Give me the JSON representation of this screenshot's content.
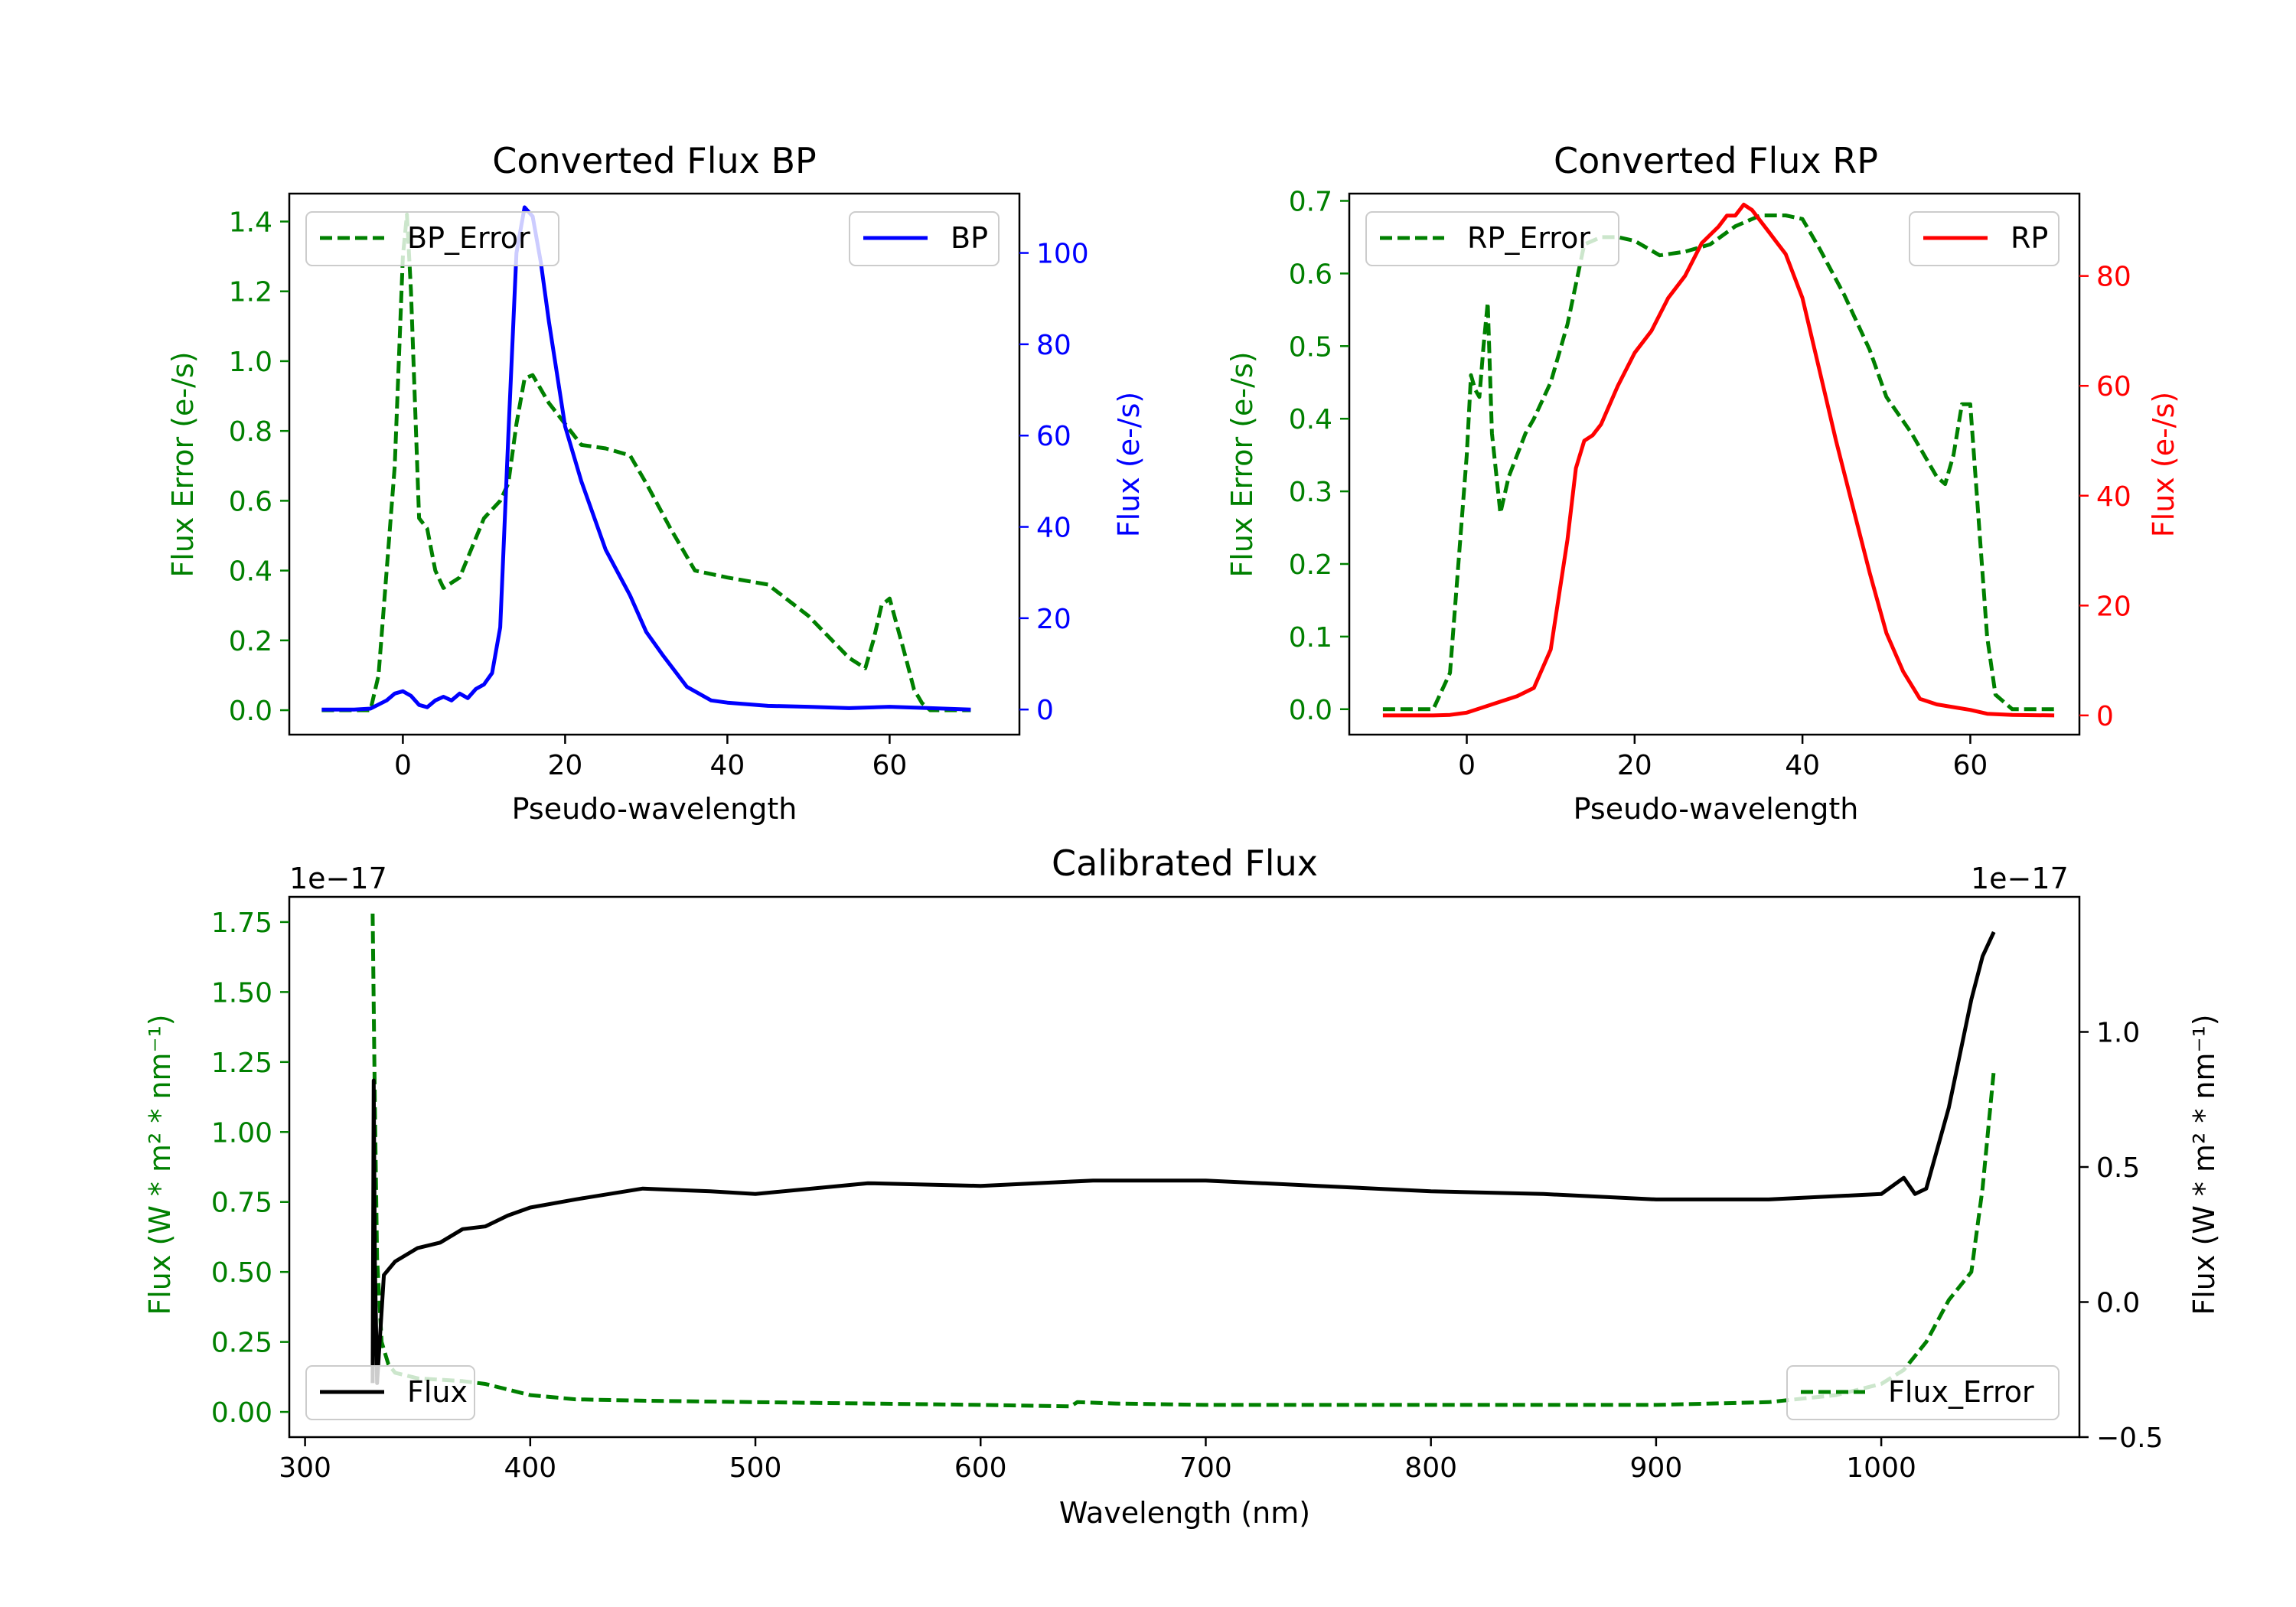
{
  "chart_data": [
    {
      "type": "line",
      "title": "Converted Flux BP",
      "xlabel": "Pseudo-wavelength",
      "ylabel_left": "Flux Error (e-/s)",
      "ylabel_right": "Flux (e-/s)",
      "xlim": [
        -14,
        76
      ],
      "ylim_left": [
        -0.07,
        1.48
      ],
      "ylim_right": [
        -5.5,
        113
      ],
      "xticks": [
        0,
        20,
        40,
        60
      ],
      "yticks_left": [
        0.0,
        0.2,
        0.4,
        0.6,
        0.8,
        1.0,
        1.2,
        1.4
      ],
      "yticks_right": [
        0,
        20,
        40,
        60,
        80,
        100
      ],
      "colors": {
        "left": "#008000",
        "right": "#0000ff"
      },
      "legend_left": {
        "label": "BP_Error",
        "placement": "upper left"
      },
      "legend_right": {
        "label": "BP",
        "placement": "upper right"
      },
      "series": [
        {
          "name": "BP_Error",
          "axis": "left",
          "style": "dashed",
          "color": "#008000",
          "x": [
            -10,
            -4,
            -3,
            -1,
            0,
            0.5,
            1,
            2,
            3,
            4,
            5,
            7,
            10,
            12,
            13,
            14,
            15,
            16,
            18,
            20,
            22,
            25,
            28,
            30,
            33,
            36,
            40,
            45,
            50,
            55,
            57,
            58,
            59,
            60,
            62,
            63,
            64,
            65,
            70
          ],
          "values": [
            0,
            0,
            0.1,
            0.7,
            1.3,
            1.42,
            1.2,
            0.55,
            0.52,
            0.4,
            0.35,
            0.38,
            0.55,
            0.6,
            0.65,
            0.82,
            0.95,
            0.96,
            0.88,
            0.82,
            0.76,
            0.75,
            0.73,
            0.65,
            0.52,
            0.4,
            0.38,
            0.36,
            0.27,
            0.15,
            0.12,
            0.2,
            0.3,
            0.32,
            0.15,
            0.06,
            0.02,
            0.0,
            0
          ]
        },
        {
          "name": "BP",
          "axis": "right",
          "style": "solid",
          "color": "#0000ff",
          "x": [
            -10,
            -6,
            -4,
            -2,
            -1,
            0,
            1,
            2,
            3,
            4,
            5,
            6,
            7,
            8,
            9,
            10,
            11,
            12,
            13,
            14,
            15,
            16,
            17,
            18,
            20,
            22,
            25,
            28,
            30,
            32,
            35,
            38,
            40,
            45,
            50,
            55,
            60,
            65,
            70
          ],
          "values": [
            0,
            0,
            0.2,
            2,
            3.5,
            4,
            3,
            1,
            0.5,
            2,
            2.8,
            2,
            3.5,
            2.5,
            4.5,
            5.5,
            8,
            18,
            60,
            100,
            110,
            108,
            98,
            85,
            62,
            50,
            35,
            25,
            17,
            12,
            5,
            2,
            1.5,
            0.8,
            0.6,
            0.3,
            0.6,
            0.3,
            0
          ],
          "note": "approximate"
        }
      ]
    },
    {
      "type": "line",
      "title": "Converted Flux RP",
      "xlabel": "Pseudo-wavelength",
      "ylabel_left": "Flux Error (e-/s)",
      "ylabel_right": "Flux (e-/s)",
      "xlim": [
        -14,
        73
      ],
      "ylim_left": [
        -0.035,
        0.71
      ],
      "ylim_right": [
        -3.5,
        95
      ],
      "xticks": [
        0,
        20,
        40,
        60
      ],
      "yticks_left": [
        0.0,
        0.1,
        0.2,
        0.3,
        0.4,
        0.5,
        0.6,
        0.7
      ],
      "yticks_right": [
        0,
        20,
        40,
        60,
        80
      ],
      "colors": {
        "left": "#008000",
        "right": "#ff0000"
      },
      "legend_left": {
        "label": "RP_Error",
        "placement": "upper left"
      },
      "legend_right": {
        "label": "RP",
        "placement": "upper right"
      },
      "series": [
        {
          "name": "RP_Error",
          "axis": "left",
          "style": "dashed",
          "color": "#008000",
          "x": [
            -10,
            -4,
            -2,
            0,
            0.5,
            1,
            1.5,
            2,
            2.5,
            3,
            4,
            5,
            6,
            7,
            8,
            10,
            12,
            14,
            16,
            18,
            20,
            23,
            26,
            29,
            32,
            35,
            38,
            40,
            42,
            45,
            48,
            50,
            53,
            55,
            56,
            57,
            58,
            59,
            60,
            62,
            63,
            65,
            70
          ],
          "values": [
            0,
            0,
            0.05,
            0.35,
            0.46,
            0.44,
            0.43,
            0.5,
            0.56,
            0.38,
            0.27,
            0.32,
            0.35,
            0.38,
            0.4,
            0.45,
            0.53,
            0.64,
            0.65,
            0.65,
            0.645,
            0.625,
            0.63,
            0.64,
            0.665,
            0.68,
            0.68,
            0.675,
            0.635,
            0.57,
            0.495,
            0.43,
            0.38,
            0.34,
            0.32,
            0.31,
            0.35,
            0.42,
            0.42,
            0.1,
            0.02,
            0.0,
            0
          ]
        },
        {
          "name": "RP",
          "axis": "right",
          "style": "solid",
          "color": "#ff0000",
          "x": [
            -10,
            -4,
            -2,
            0,
            2,
            4,
            6,
            8,
            10,
            12,
            13,
            14,
            15,
            16,
            18,
            20,
            22,
            24,
            26,
            28,
            30,
            31,
            32,
            33,
            34,
            35,
            36,
            37,
            38,
            40,
            42,
            44,
            46,
            48,
            50,
            52,
            54,
            56,
            58,
            60,
            62,
            65,
            70
          ],
          "values": [
            0,
            0,
            0.1,
            0.5,
            1.5,
            2.5,
            3.5,
            5,
            12,
            32,
            45,
            50,
            51,
            53,
            60,
            66,
            70,
            76,
            80,
            86,
            89,
            91,
            91,
            93,
            92,
            90,
            88,
            86,
            84,
            76,
            63,
            50,
            38,
            26,
            15,
            8,
            3,
            2,
            1.5,
            1,
            0.3,
            0.1,
            0
          ]
        }
      ]
    },
    {
      "type": "line",
      "title": "Calibrated Flux",
      "xlabel": "Wavelength (nm)",
      "ylabel_left": "Flux (W * m² * nm⁻¹)",
      "ylabel_right": "Flux (W * m² * nm⁻¹)",
      "offset_label_left": "1e−17",
      "offset_label_right": "1e−17",
      "xlim": [
        293,
        1088
      ],
      "ylim_left": [
        -0.09,
        1.84
      ],
      "ylim_right": [
        -0.5,
        1.5
      ],
      "xticks": [
        300,
        400,
        500,
        600,
        700,
        800,
        900,
        1000
      ],
      "yticks_left": [
        0.0,
        0.25,
        0.5,
        0.75,
        1.0,
        1.25,
        1.5,
        1.75
      ],
      "yticks_left_labels": [
        "0.00",
        "0.25",
        "0.50",
        "0.75",
        "1.00",
        "1.25",
        "1.50",
        "1.75"
      ],
      "yticks_right": [
        -0.5,
        0.0,
        0.5,
        1.0
      ],
      "yticks_right_labels": [
        "−0.5",
        "0.0",
        "0.5",
        "1.0"
      ],
      "colors": {
        "left": "#008000",
        "right": "#000000"
      },
      "legend_left": {
        "label": "Flux",
        "placement": "lower left"
      },
      "legend_right": {
        "label": "Flux_Error",
        "placement": "lower right"
      },
      "series": [
        {
          "name": "Flux_Error",
          "axis": "left",
          "style": "dashed",
          "color": "#008000",
          "x": [
            330,
            331,
            332,
            334,
            337,
            340,
            345,
            350,
            360,
            370,
            380,
            390,
            400,
            420,
            450,
            500,
            550,
            600,
            640,
            643,
            660,
            700,
            800,
            900,
            950,
            980,
            1000,
            1010,
            1020,
            1030,
            1040,
            1045,
            1050
          ],
          "values": [
            1.78,
            1.1,
            0.55,
            0.25,
            0.17,
            0.14,
            0.13,
            0.12,
            0.115,
            0.11,
            0.1,
            0.08,
            0.06,
            0.045,
            0.04,
            0.035,
            0.03,
            0.025,
            0.02,
            0.035,
            0.03,
            0.025,
            0.025,
            0.025,
            0.035,
            0.06,
            0.1,
            0.15,
            0.25,
            0.4,
            0.5,
            0.8,
            1.22
          ]
        },
        {
          "name": "Flux",
          "axis": "right",
          "style": "solid",
          "color": "#000000",
          "x": [
            330,
            330.5,
            331,
            332,
            335,
            340,
            350,
            360,
            370,
            380,
            390,
            400,
            420,
            450,
            480,
            500,
            550,
            600,
            650,
            700,
            750,
            800,
            850,
            900,
            950,
            1000,
            1010,
            1015,
            1020,
            1030,
            1040,
            1045,
            1050
          ],
          "values": [
            -0.3,
            0.82,
            0.15,
            -0.3,
            0.1,
            0.15,
            0.2,
            0.22,
            0.27,
            0.28,
            0.32,
            0.35,
            0.38,
            0.42,
            0.41,
            0.4,
            0.44,
            0.43,
            0.45,
            0.45,
            0.43,
            0.41,
            0.4,
            0.38,
            0.38,
            0.4,
            0.46,
            0.4,
            0.42,
            0.72,
            1.12,
            1.28,
            1.37
          ],
          "note": "approximate envelope; oscillating"
        }
      ]
    }
  ]
}
